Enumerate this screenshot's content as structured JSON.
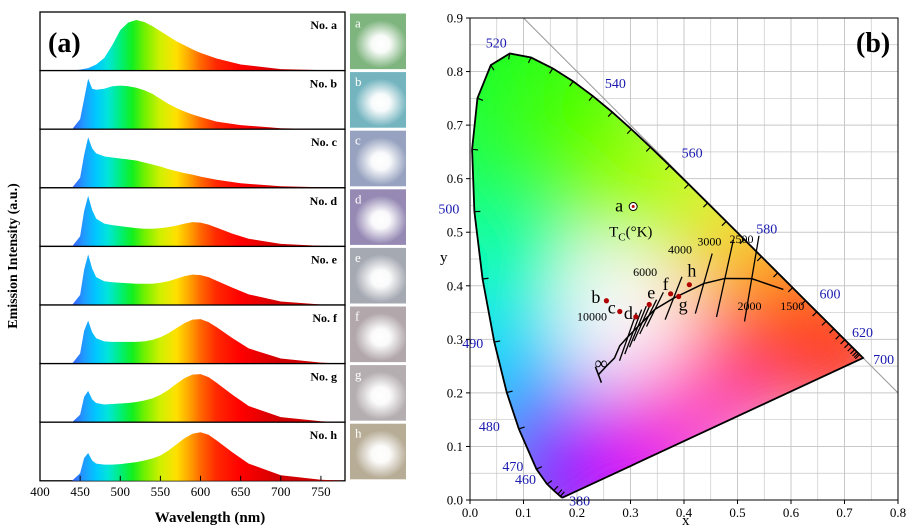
{
  "figure": {
    "panel_a_label": "(a)",
    "panel_b_label": "(b)"
  },
  "chart_data": [
    {
      "type": "area",
      "panel": "(a)",
      "xlabel": "Wavelength (nm)",
      "ylabel": "Emission Intensity (a.u.)",
      "xlim": [
        400,
        780
      ],
      "x_ticks": [
        "400",
        "450",
        "500",
        "550",
        "600",
        "650",
        "700",
        "750"
      ],
      "grid": false,
      "series": [
        {
          "name": "No. a",
          "photo_label": "a",
          "photo_color": "#a8f0a8",
          "x": [
            440,
            450,
            460,
            470,
            480,
            490,
            500,
            510,
            520,
            530,
            540,
            550,
            560,
            570,
            580,
            590,
            600,
            620,
            650,
            700,
            750,
            780
          ],
          "values": [
            0.0,
            0.02,
            0.05,
            0.12,
            0.25,
            0.5,
            0.8,
            0.95,
            1.0,
            0.96,
            0.88,
            0.78,
            0.68,
            0.58,
            0.5,
            0.42,
            0.35,
            0.24,
            0.12,
            0.03,
            0.01,
            0.0
          ]
        },
        {
          "name": "No. b",
          "photo_label": "b",
          "photo_color": "#9af0ff",
          "x": [
            440,
            450,
            455,
            460,
            465,
            470,
            480,
            490,
            500,
            510,
            520,
            530,
            540,
            550,
            560,
            570,
            580,
            590,
            600,
            620,
            650,
            700,
            750,
            780
          ],
          "values": [
            0.0,
            0.2,
            0.6,
            1.0,
            0.8,
            0.78,
            0.8,
            0.85,
            0.86,
            0.85,
            0.82,
            0.77,
            0.7,
            0.6,
            0.5,
            0.42,
            0.35,
            0.29,
            0.24,
            0.15,
            0.08,
            0.02,
            0.005,
            0.0
          ]
        },
        {
          "name": "No. c",
          "photo_label": "c",
          "photo_color": "#c8d8ff",
          "x": [
            440,
            450,
            455,
            460,
            465,
            470,
            480,
            490,
            500,
            510,
            520,
            530,
            540,
            550,
            560,
            570,
            580,
            590,
            600,
            620,
            650,
            700,
            750,
            780
          ],
          "values": [
            0.0,
            0.2,
            0.65,
            1.0,
            0.78,
            0.68,
            0.62,
            0.6,
            0.58,
            0.56,
            0.54,
            0.5,
            0.46,
            0.42,
            0.37,
            0.33,
            0.29,
            0.26,
            0.22,
            0.16,
            0.09,
            0.03,
            0.01,
            0.0
          ]
        },
        {
          "name": "No. d",
          "photo_label": "d",
          "photo_color": "#c8b8f0",
          "x": [
            440,
            450,
            455,
            460,
            465,
            470,
            480,
            490,
            500,
            510,
            520,
            530,
            540,
            550,
            560,
            570,
            580,
            590,
            600,
            610,
            620,
            640,
            660,
            700,
            750,
            780
          ],
          "values": [
            0.0,
            0.2,
            0.7,
            1.0,
            0.72,
            0.55,
            0.45,
            0.42,
            0.4,
            0.38,
            0.36,
            0.35,
            0.35,
            0.36,
            0.38,
            0.41,
            0.45,
            0.48,
            0.47,
            0.43,
            0.37,
            0.25,
            0.15,
            0.05,
            0.01,
            0.0
          ]
        },
        {
          "name": "No. e",
          "photo_label": "e",
          "photo_color": "#dde2ee",
          "x": [
            440,
            450,
            455,
            460,
            465,
            470,
            480,
            490,
            500,
            510,
            520,
            530,
            540,
            550,
            560,
            570,
            580,
            590,
            600,
            610,
            620,
            640,
            660,
            700,
            750,
            780
          ],
          "values": [
            0.0,
            0.2,
            0.7,
            1.0,
            0.72,
            0.55,
            0.47,
            0.45,
            0.44,
            0.43,
            0.42,
            0.42,
            0.42,
            0.44,
            0.47,
            0.52,
            0.57,
            0.6,
            0.59,
            0.55,
            0.48,
            0.34,
            0.21,
            0.07,
            0.01,
            0.0
          ]
        },
        {
          "name": "No. f",
          "photo_label": "f",
          "photo_color": "#eee0e4",
          "x": [
            440,
            450,
            455,
            460,
            465,
            470,
            480,
            490,
            500,
            510,
            520,
            530,
            540,
            550,
            560,
            570,
            580,
            590,
            600,
            610,
            620,
            640,
            660,
            700,
            750,
            780
          ],
          "values": [
            0.0,
            0.2,
            0.65,
            0.85,
            0.62,
            0.5,
            0.44,
            0.43,
            0.43,
            0.43,
            0.43,
            0.44,
            0.47,
            0.52,
            0.6,
            0.7,
            0.8,
            0.87,
            0.88,
            0.82,
            0.72,
            0.5,
            0.3,
            0.1,
            0.02,
            0.0
          ]
        },
        {
          "name": "No. g",
          "photo_label": "g",
          "photo_color": "#f2e8ec",
          "x": [
            440,
            450,
            455,
            460,
            465,
            470,
            480,
            490,
            500,
            510,
            520,
            530,
            540,
            550,
            560,
            570,
            580,
            590,
            600,
            610,
            620,
            640,
            660,
            700,
            750,
            780
          ],
          "values": [
            0.0,
            0.15,
            0.5,
            0.62,
            0.45,
            0.38,
            0.35,
            0.36,
            0.37,
            0.38,
            0.4,
            0.43,
            0.47,
            0.54,
            0.64,
            0.76,
            0.87,
            0.94,
            0.95,
            0.89,
            0.78,
            0.54,
            0.32,
            0.1,
            0.02,
            0.0
          ]
        },
        {
          "name": "No. h",
          "photo_label": "h",
          "photo_color": "#f4e6c8",
          "x": [
            440,
            450,
            455,
            460,
            465,
            470,
            480,
            490,
            500,
            510,
            520,
            530,
            540,
            550,
            560,
            570,
            580,
            590,
            600,
            610,
            620,
            640,
            660,
            700,
            750,
            780
          ],
          "values": [
            0.0,
            0.15,
            0.45,
            0.55,
            0.4,
            0.34,
            0.32,
            0.32,
            0.33,
            0.35,
            0.37,
            0.4,
            0.44,
            0.5,
            0.6,
            0.72,
            0.84,
            0.93,
            0.96,
            0.91,
            0.8,
            0.56,
            0.34,
            0.11,
            0.02,
            0.0
          ]
        }
      ]
    },
    {
      "type": "scatter",
      "panel": "(b)",
      "xlabel": "x",
      "ylabel": "y",
      "xlim": [
        0.0,
        0.8
      ],
      "ylim": [
        0.0,
        0.9
      ],
      "x_ticks": [
        "0.0",
        "0.1",
        "0.2",
        "0.3",
        "0.4",
        "0.5",
        "0.6",
        "0.7",
        "0.8"
      ],
      "y_ticks": [
        "0.0",
        "0.1",
        "0.2",
        "0.3",
        "0.4",
        "0.5",
        "0.6",
        "0.7",
        "0.8",
        "0.9"
      ],
      "grid": true,
      "spectral_locus": [
        [
          0.1741,
          0.005
        ],
        [
          0.1738,
          0.0049
        ],
        [
          0.1733,
          0.0048
        ],
        [
          0.1726,
          0.0048
        ],
        [
          0.1714,
          0.0051
        ],
        [
          0.1689,
          0.0069
        ],
        [
          0.1644,
          0.0109
        ],
        [
          0.1566,
          0.0177
        ],
        [
          0.144,
          0.0297
        ],
        [
          0.1241,
          0.0578
        ],
        [
          0.0913,
          0.1327
        ],
        [
          0.0687,
          0.2007
        ],
        [
          0.0454,
          0.295
        ],
        [
          0.0235,
          0.4127
        ],
        [
          0.0082,
          0.5384
        ],
        [
          0.0039,
          0.6548
        ],
        [
          0.0139,
          0.7502
        ],
        [
          0.0389,
          0.812
        ],
        [
          0.0743,
          0.8338
        ],
        [
          0.1142,
          0.8262
        ],
        [
          0.1547,
          0.8059
        ],
        [
          0.1929,
          0.7816
        ],
        [
          0.2296,
          0.7543
        ],
        [
          0.2658,
          0.7243
        ],
        [
          0.3016,
          0.6923
        ],
        [
          0.3373,
          0.6589
        ],
        [
          0.3731,
          0.6245
        ],
        [
          0.4087,
          0.5896
        ],
        [
          0.4441,
          0.5547
        ],
        [
          0.4788,
          0.5202
        ],
        [
          0.5125,
          0.4866
        ],
        [
          0.5448,
          0.4544
        ],
        [
          0.5752,
          0.4242
        ],
        [
          0.6029,
          0.3965
        ],
        [
          0.627,
          0.3725
        ],
        [
          0.6482,
          0.3514
        ],
        [
          0.6658,
          0.334
        ],
        [
          0.6801,
          0.3197
        ],
        [
          0.6915,
          0.3083
        ],
        [
          0.7006,
          0.2993
        ],
        [
          0.7079,
          0.292
        ],
        [
          0.714,
          0.2859
        ],
        [
          0.719,
          0.2809
        ],
        [
          0.723,
          0.277
        ],
        [
          0.726,
          0.274
        ],
        [
          0.7283,
          0.2717
        ],
        [
          0.7347,
          0.2653
        ]
      ],
      "wavelength_labels": [
        {
          "text": "380",
          "x": 0.1741,
          "y": 0.005
        },
        {
          "text": "460",
          "x": 0.144,
          "y": 0.0297
        },
        {
          "text": "470",
          "x": 0.1241,
          "y": 0.0578
        },
        {
          "text": "480",
          "x": 0.0913,
          "y": 0.1327
        },
        {
          "text": "490",
          "x": 0.0454,
          "y": 0.295
        },
        {
          "text": "500",
          "x": 0.0082,
          "y": 0.5384
        },
        {
          "text": "520",
          "x": 0.0743,
          "y": 0.8338
        },
        {
          "text": "540",
          "x": 0.2296,
          "y": 0.7543
        },
        {
          "text": "560",
          "x": 0.3731,
          "y": 0.6245
        },
        {
          "text": "580",
          "x": 0.5125,
          "y": 0.4866
        },
        {
          "text": "600",
          "x": 0.627,
          "y": 0.3725
        },
        {
          "text": "620",
          "x": 0.6915,
          "y": 0.3083
        },
        {
          "text": "700",
          "x": 0.7347,
          "y": 0.2653
        }
      ],
      "planckian_locus": [
        [
          0.24,
          0.234
        ],
        [
          0.255,
          0.25
        ],
        [
          0.27,
          0.265
        ],
        [
          0.28,
          0.288
        ],
        [
          0.2952,
          0.3048
        ],
        [
          0.3138,
          0.3237
        ],
        [
          0.3221,
          0.3318
        ],
        [
          0.3457,
          0.3559
        ],
        [
          0.3805,
          0.3768
        ],
        [
          0.4369,
          0.4041
        ],
        [
          0.4765,
          0.4137
        ],
        [
          0.5266,
          0.4133
        ],
        [
          0.5857,
          0.3931
        ]
      ],
      "isotherms": [
        {
          "t": [
            0.2952,
            0.3048
          ],
          "d": [
            0.035,
            0.028
          ]
        },
        {
          "t": [
            0.305,
            0.314
          ],
          "d": [
            0.035,
            0.026
          ]
        },
        {
          "t": [
            0.3138,
            0.3237
          ],
          "d": [
            0.035,
            0.024
          ]
        },
        {
          "t": [
            0.3221,
            0.3318
          ],
          "d": [
            0.035,
            0.022
          ]
        },
        {
          "t": [
            0.333,
            0.342
          ],
          "d": [
            0.035,
            0.02
          ]
        },
        {
          "t": [
            0.3457,
            0.3559
          ],
          "d": [
            0.035,
            0.02
          ]
        },
        {
          "t": [
            0.3805,
            0.3768
          ],
          "d": [
            0.035,
            0.025
          ]
        },
        {
          "t": [
            0.4369,
            0.4041
          ],
          "d": [
            0.035,
            0.035
          ]
        },
        {
          "t": [
            0.4765,
            0.4137
          ],
          "d": [
            0.035,
            0.045
          ]
        },
        {
          "t": [
            0.5266,
            0.4133
          ],
          "d": [
            0.03,
            0.05
          ]
        }
      ],
      "cct_labels": [
        {
          "text": "∞",
          "x": 0.233,
          "y": 0.245
        },
        {
          "text": "10000",
          "x": 0.2,
          "y": 0.335
        },
        {
          "text": "6000",
          "x": 0.305,
          "y": 0.418
        },
        {
          "text": "4000",
          "x": 0.37,
          "y": 0.46
        },
        {
          "text": "3000",
          "x": 0.425,
          "y": 0.475
        },
        {
          "text": "2500",
          "x": 0.485,
          "y": 0.48
        },
        {
          "text": "2000",
          "x": 0.5,
          "y": 0.355
        },
        {
          "text": "1500",
          "x": 0.58,
          "y": 0.355
        }
      ],
      "tc_label": {
        "text": "T",
        "sub": "C",
        "rest": "(°K)",
        "x": 0.26,
        "y": 0.492
      },
      "points": [
        {
          "label": "a",
          "x": 0.305,
          "y": 0.548
        },
        {
          "label": "b",
          "x": 0.255,
          "y": 0.372
        },
        {
          "label": "c",
          "x": 0.28,
          "y": 0.352
        },
        {
          "label": "d",
          "x": 0.31,
          "y": 0.342
        },
        {
          "label": "e",
          "x": 0.335,
          "y": 0.365
        },
        {
          "label": "f",
          "x": 0.375,
          "y": 0.385
        },
        {
          "label": "g",
          "x": 0.39,
          "y": 0.38
        },
        {
          "label": "h",
          "x": 0.41,
          "y": 0.402
        }
      ]
    }
  ]
}
